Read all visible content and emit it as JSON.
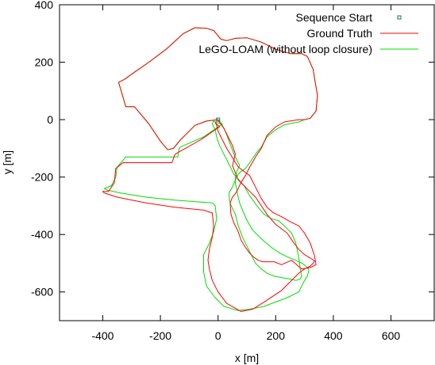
{
  "chart_data": {
    "type": "line",
    "xlabel": "x [m]",
    "ylabel": "y [m]",
    "xlim": [
      -550,
      750
    ],
    "ylim": [
      -700,
      400
    ],
    "x_ticks": [
      -400,
      -200,
      0,
      200,
      400,
      600
    ],
    "y_ticks": [
      400,
      200,
      0,
      -200,
      -400,
      -600
    ],
    "grid": false,
    "legend_position": "top-right",
    "colors": {
      "ground_truth": "#ff0000",
      "lego_loam": "#00dd00",
      "start": "#1f6f5f"
    },
    "series": [
      {
        "name": "Sequence Start",
        "marker": "square",
        "x": [
          0
        ],
        "y": [
          0
        ]
      },
      {
        "name": "Ground Truth",
        "x": [
          0,
          -40,
          -80,
          -110,
          -130,
          -155,
          -175,
          -200,
          -240,
          -290,
          -320,
          -345,
          -325,
          -290,
          -240,
          -180,
          -120,
          -80,
          -40,
          -15,
          10,
          30,
          60,
          100,
          150,
          200,
          250,
          290,
          310,
          330,
          338,
          345,
          340,
          320,
          300,
          280,
          260,
          230,
          200,
          170,
          150,
          130,
          110,
          95,
          80,
          70,
          60,
          50,
          42,
          45,
          55,
          70,
          80,
          95,
          110,
          125,
          140,
          155,
          175,
          195,
          220,
          255,
          290,
          320,
          340,
          335,
          320,
          300,
          280,
          250,
          220,
          190,
          170,
          150,
          130,
          110,
          70,
          30,
          10,
          0,
          -5,
          -10,
          -5,
          0,
          5,
          -60,
          -140,
          -150,
          -160,
          -260,
          -330,
          -355,
          -360,
          -380,
          -400,
          -395,
          -350,
          -250,
          -150,
          -50,
          -20,
          -15,
          -20,
          -30,
          -35,
          -30,
          -20,
          0,
          30,
          80,
          120,
          160,
          190,
          220,
          250,
          280,
          300,
          320,
          330,
          335,
          320,
          300,
          280,
          260,
          240,
          200,
          170,
          150,
          130,
          110,
          90,
          70,
          60,
          50,
          55,
          60,
          50,
          35,
          20,
          5,
          0
        ],
        "y": [
          0,
          -5,
          -20,
          -50,
          -70,
          -100,
          -105,
          -75,
          -15,
          45,
          45,
          130,
          140,
          165,
          200,
          245,
          300,
          320,
          318,
          310,
          280,
          275,
          283,
          285,
          270,
          245,
          230,
          230,
          220,
          175,
          125,
          85,
          30,
          5,
          0,
          0,
          -3,
          -8,
          -25,
          -55,
          -100,
          -130,
          -165,
          -195,
          -218,
          -240,
          -258,
          -270,
          -290,
          -330,
          -360,
          -390,
          -420,
          -445,
          -465,
          -480,
          -490,
          -495,
          -495,
          -495,
          -505,
          -490,
          -520,
          -515,
          -505,
          -475,
          -430,
          -395,
          -370,
          -355,
          -338,
          -323,
          -305,
          -275,
          -235,
          -195,
          -165,
          -100,
          -60,
          -40,
          -20,
          -10,
          -15,
          -20,
          -25,
          -70,
          -115,
          -122,
          -150,
          -150,
          -150,
          -170,
          -220,
          -250,
          -250,
          -255,
          -270,
          -290,
          -305,
          -315,
          -325,
          -370,
          -410,
          -450,
          -490,
          -520,
          -560,
          -600,
          -640,
          -668,
          -660,
          -635,
          -615,
          -595,
          -565,
          -535,
          -520,
          -510,
          -500,
          -492,
          -482,
          -470,
          -452,
          -425,
          -395,
          -365,
          -330,
          -300,
          -270,
          -250,
          -230,
          -210,
          -185,
          -160,
          -140,
          -120,
          -90,
          -60,
          -30,
          -10,
          0
        ]
      },
      {
        "name": "LeGO-LOAM (without loop closure)",
        "x": [
          0,
          -40,
          -80,
          -110,
          -130,
          -155,
          -175,
          -200,
          -240,
          -290,
          -320,
          -345,
          -325,
          -290,
          -240,
          -180,
          -120,
          -80,
          -40,
          -15,
          10,
          30,
          60,
          100,
          150,
          200,
          250,
          290,
          310,
          330,
          338,
          345,
          340,
          320,
          300,
          280,
          260,
          230,
          200,
          170,
          150,
          130,
          110,
          95,
          80,
          70,
          60,
          50,
          38,
          40,
          48,
          60,
          70,
          85,
          100,
          115,
          130,
          150,
          170,
          195,
          220,
          250,
          270,
          285,
          290,
          285,
          280,
          270,
          255,
          230,
          210,
          185,
          160,
          135,
          110,
          90,
          55,
          25,
          5,
          -5,
          -10,
          -20,
          -15,
          -5,
          15,
          -50,
          -130,
          -135,
          -140,
          -250,
          -320,
          -350,
          -355,
          -370,
          -395,
          -385,
          -340,
          -250,
          -150,
          -20,
          -10,
          -5,
          -15,
          -30,
          -50,
          -50,
          -40,
          -10,
          20,
          70,
          110,
          160,
          200,
          240,
          280,
          290,
          300,
          310,
          315,
          310,
          295,
          270,
          245,
          215,
          185,
          150,
          120,
          100,
          85,
          75,
          70,
          65,
          60,
          60,
          65,
          75,
          55,
          40,
          25,
          10,
          0
        ],
        "y": [
          0,
          -5,
          -20,
          -50,
          -70,
          -100,
          -105,
          -75,
          -15,
          45,
          45,
          130,
          140,
          165,
          200,
          245,
          300,
          320,
          318,
          310,
          280,
          275,
          283,
          285,
          270,
          245,
          230,
          230,
          220,
          175,
          125,
          85,
          30,
          5,
          0,
          -8,
          -12,
          -18,
          -35,
          -60,
          -95,
          -120,
          -150,
          -170,
          -180,
          -190,
          -210,
          -235,
          -255,
          -285,
          -305,
          -330,
          -370,
          -410,
          -440,
          -470,
          -500,
          -520,
          -535,
          -545,
          -550,
          -555,
          -560,
          -555,
          -545,
          -520,
          -480,
          -430,
          -395,
          -370,
          -352,
          -345,
          -330,
          -300,
          -265,
          -230,
          -190,
          -130,
          -90,
          -60,
          -35,
          -15,
          -5,
          -10,
          -15,
          -60,
          -95,
          -100,
          -130,
          -130,
          -130,
          -165,
          -200,
          -230,
          -240,
          -245,
          -255,
          -270,
          -280,
          -290,
          -300,
          -345,
          -390,
          -430,
          -470,
          -530,
          -580,
          -620,
          -650,
          -665,
          -660,
          -650,
          -635,
          -620,
          -600,
          -580,
          -560,
          -545,
          -525,
          -515,
          -502,
          -490,
          -480,
          -465,
          -445,
          -415,
          -385,
          -350,
          -315,
          -290,
          -270,
          -245,
          -220,
          -200,
          -180,
          -160,
          -120,
          -80,
          -40,
          -10,
          0
        ]
      }
    ]
  }
}
